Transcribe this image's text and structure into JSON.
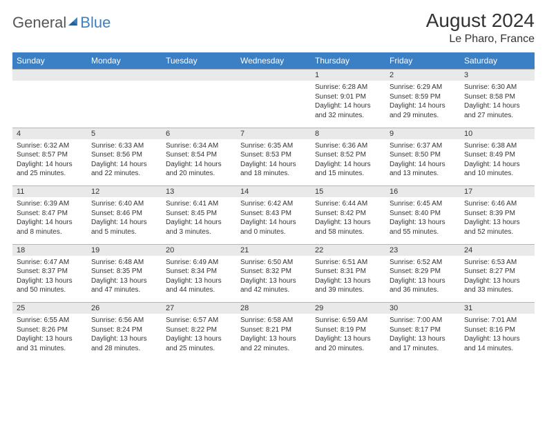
{
  "logo": {
    "part1": "General",
    "part2": "Blue"
  },
  "title": "August 2024",
  "location": "Le Pharo, France",
  "colors": {
    "header_bg": "#3b7fc4",
    "header_text": "#ffffff",
    "daynum_bg": "#e9e9e9",
    "daynum_border": "#b5b5b5",
    "body_text": "#333333",
    "logo_gray": "#555555",
    "logo_blue": "#3b7fc4"
  },
  "weekdays": [
    "Sunday",
    "Monday",
    "Tuesday",
    "Wednesday",
    "Thursday",
    "Friday",
    "Saturday"
  ],
  "weeks": [
    [
      null,
      null,
      null,
      null,
      {
        "n": "1",
        "sr": "Sunrise: 6:28 AM",
        "ss": "Sunset: 9:01 PM",
        "dl": "Daylight: 14 hours and 32 minutes."
      },
      {
        "n": "2",
        "sr": "Sunrise: 6:29 AM",
        "ss": "Sunset: 8:59 PM",
        "dl": "Daylight: 14 hours and 29 minutes."
      },
      {
        "n": "3",
        "sr": "Sunrise: 6:30 AM",
        "ss": "Sunset: 8:58 PM",
        "dl": "Daylight: 14 hours and 27 minutes."
      }
    ],
    [
      {
        "n": "4",
        "sr": "Sunrise: 6:32 AM",
        "ss": "Sunset: 8:57 PM",
        "dl": "Daylight: 14 hours and 25 minutes."
      },
      {
        "n": "5",
        "sr": "Sunrise: 6:33 AM",
        "ss": "Sunset: 8:56 PM",
        "dl": "Daylight: 14 hours and 22 minutes."
      },
      {
        "n": "6",
        "sr": "Sunrise: 6:34 AM",
        "ss": "Sunset: 8:54 PM",
        "dl": "Daylight: 14 hours and 20 minutes."
      },
      {
        "n": "7",
        "sr": "Sunrise: 6:35 AM",
        "ss": "Sunset: 8:53 PM",
        "dl": "Daylight: 14 hours and 18 minutes."
      },
      {
        "n": "8",
        "sr": "Sunrise: 6:36 AM",
        "ss": "Sunset: 8:52 PM",
        "dl": "Daylight: 14 hours and 15 minutes."
      },
      {
        "n": "9",
        "sr": "Sunrise: 6:37 AM",
        "ss": "Sunset: 8:50 PM",
        "dl": "Daylight: 14 hours and 13 minutes."
      },
      {
        "n": "10",
        "sr": "Sunrise: 6:38 AM",
        "ss": "Sunset: 8:49 PM",
        "dl": "Daylight: 14 hours and 10 minutes."
      }
    ],
    [
      {
        "n": "11",
        "sr": "Sunrise: 6:39 AM",
        "ss": "Sunset: 8:47 PM",
        "dl": "Daylight: 14 hours and 8 minutes."
      },
      {
        "n": "12",
        "sr": "Sunrise: 6:40 AM",
        "ss": "Sunset: 8:46 PM",
        "dl": "Daylight: 14 hours and 5 minutes."
      },
      {
        "n": "13",
        "sr": "Sunrise: 6:41 AM",
        "ss": "Sunset: 8:45 PM",
        "dl": "Daylight: 14 hours and 3 minutes."
      },
      {
        "n": "14",
        "sr": "Sunrise: 6:42 AM",
        "ss": "Sunset: 8:43 PM",
        "dl": "Daylight: 14 hours and 0 minutes."
      },
      {
        "n": "15",
        "sr": "Sunrise: 6:44 AM",
        "ss": "Sunset: 8:42 PM",
        "dl": "Daylight: 13 hours and 58 minutes."
      },
      {
        "n": "16",
        "sr": "Sunrise: 6:45 AM",
        "ss": "Sunset: 8:40 PM",
        "dl": "Daylight: 13 hours and 55 minutes."
      },
      {
        "n": "17",
        "sr": "Sunrise: 6:46 AM",
        "ss": "Sunset: 8:39 PM",
        "dl": "Daylight: 13 hours and 52 minutes."
      }
    ],
    [
      {
        "n": "18",
        "sr": "Sunrise: 6:47 AM",
        "ss": "Sunset: 8:37 PM",
        "dl": "Daylight: 13 hours and 50 minutes."
      },
      {
        "n": "19",
        "sr": "Sunrise: 6:48 AM",
        "ss": "Sunset: 8:35 PM",
        "dl": "Daylight: 13 hours and 47 minutes."
      },
      {
        "n": "20",
        "sr": "Sunrise: 6:49 AM",
        "ss": "Sunset: 8:34 PM",
        "dl": "Daylight: 13 hours and 44 minutes."
      },
      {
        "n": "21",
        "sr": "Sunrise: 6:50 AM",
        "ss": "Sunset: 8:32 PM",
        "dl": "Daylight: 13 hours and 42 minutes."
      },
      {
        "n": "22",
        "sr": "Sunrise: 6:51 AM",
        "ss": "Sunset: 8:31 PM",
        "dl": "Daylight: 13 hours and 39 minutes."
      },
      {
        "n": "23",
        "sr": "Sunrise: 6:52 AM",
        "ss": "Sunset: 8:29 PM",
        "dl": "Daylight: 13 hours and 36 minutes."
      },
      {
        "n": "24",
        "sr": "Sunrise: 6:53 AM",
        "ss": "Sunset: 8:27 PM",
        "dl": "Daylight: 13 hours and 33 minutes."
      }
    ],
    [
      {
        "n": "25",
        "sr": "Sunrise: 6:55 AM",
        "ss": "Sunset: 8:26 PM",
        "dl": "Daylight: 13 hours and 31 minutes."
      },
      {
        "n": "26",
        "sr": "Sunrise: 6:56 AM",
        "ss": "Sunset: 8:24 PM",
        "dl": "Daylight: 13 hours and 28 minutes."
      },
      {
        "n": "27",
        "sr": "Sunrise: 6:57 AM",
        "ss": "Sunset: 8:22 PM",
        "dl": "Daylight: 13 hours and 25 minutes."
      },
      {
        "n": "28",
        "sr": "Sunrise: 6:58 AM",
        "ss": "Sunset: 8:21 PM",
        "dl": "Daylight: 13 hours and 22 minutes."
      },
      {
        "n": "29",
        "sr": "Sunrise: 6:59 AM",
        "ss": "Sunset: 8:19 PM",
        "dl": "Daylight: 13 hours and 20 minutes."
      },
      {
        "n": "30",
        "sr": "Sunrise: 7:00 AM",
        "ss": "Sunset: 8:17 PM",
        "dl": "Daylight: 13 hours and 17 minutes."
      },
      {
        "n": "31",
        "sr": "Sunrise: 7:01 AM",
        "ss": "Sunset: 8:16 PM",
        "dl": "Daylight: 13 hours and 14 minutes."
      }
    ]
  ]
}
